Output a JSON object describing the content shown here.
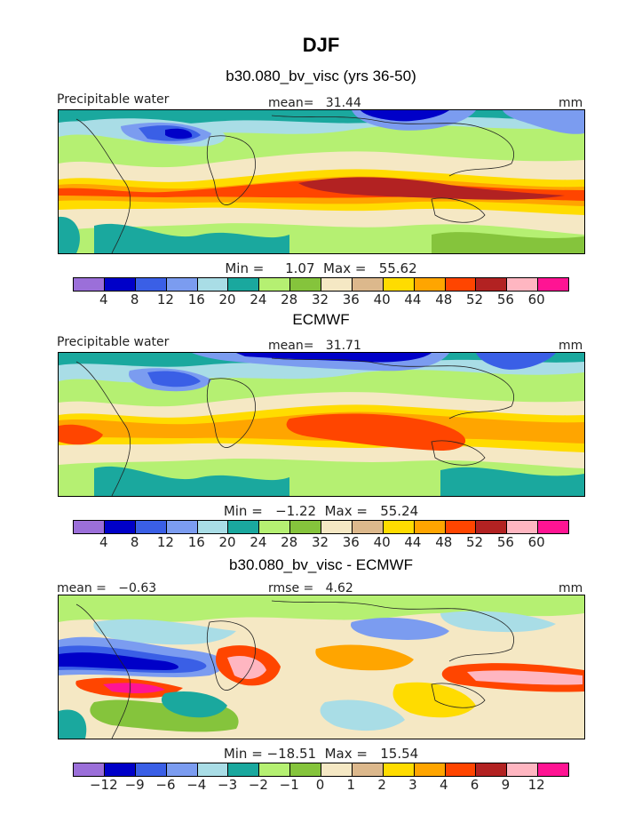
{
  "title": "DJF",
  "subtitle": "b30.080_bv_visc (yrs 36-50)",
  "panels": [
    {
      "left_label": "Precipitable water",
      "center_label": "mean=   31.44",
      "right_label": "mm",
      "stats": "Min =     1.07  Max =   55.62",
      "levels": [
        "4",
        "8",
        "12",
        "16",
        "20",
        "24",
        "28",
        "32",
        "36",
        "40",
        "44",
        "48",
        "52",
        "56",
        "60"
      ]
    },
    {
      "title": "ECMWF",
      "left_label": "Precipitable water",
      "center_label": "mean=   31.71",
      "right_label": "mm",
      "stats": "Min =   −1.22  Max =   55.24",
      "levels": [
        "4",
        "8",
        "12",
        "16",
        "20",
        "24",
        "28",
        "32",
        "36",
        "40",
        "44",
        "48",
        "52",
        "56",
        "60"
      ]
    },
    {
      "title": "b30.080_bv_visc - ECMWF",
      "left_label": "mean =   −0.63",
      "center_label": "rmse =   4.62",
      "right_label": "mm",
      "stats": "Min = −18.51  Max =   15.54",
      "levels": [
        "−12",
        "−9",
        "−6",
        "−4",
        "−3",
        "−2",
        "−1",
        "0",
        "1",
        "2",
        "3",
        "4",
        "6",
        "9",
        "12"
      ]
    }
  ],
  "palette": [
    "#9b6fd9",
    "#0000c8",
    "#3a5fe6",
    "#7b9cf0",
    "#a9dde6",
    "#1aa89e",
    "#b5f072",
    "#85c43c",
    "#f5e8c4",
    "#dcb88c",
    "#ffdc00",
    "#ffa500",
    "#ff4500",
    "#b22222",
    "#ffb6c1",
    "#ff1493"
  ]
}
